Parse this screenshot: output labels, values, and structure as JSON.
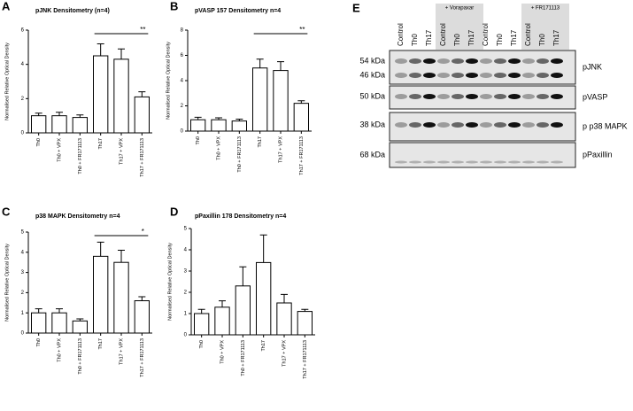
{
  "chart_data": [
    {
      "type": "bar",
      "label": "A",
      "title": "pJNK Densitometry (n=4)",
      "y_label": "Normalised Relative Optical Density",
      "categories": [
        "Th0",
        "Th0 + VPX",
        "Th0 + FR171113",
        "Th17",
        "Th17 + VPX",
        "Th17 + FR171113"
      ],
      "values": [
        1.0,
        1.0,
        0.9,
        4.5,
        4.3,
        2.1
      ],
      "errors": [
        0.15,
        0.2,
        0.15,
        0.7,
        0.6,
        0.3
      ],
      "color": "#ffffff",
      "ylim": [
        0,
        6
      ],
      "yticks": [
        0,
        2,
        4,
        6
      ],
      "annotation": "**"
    },
    {
      "type": "bar",
      "label": "B",
      "title": "pVASP 157 Densitometry n=4",
      "y_label": "Normalised Relative Optical Density",
      "categories": [
        "Th0",
        "Th0 + VPX",
        "Th0 + FR171113",
        "Th17",
        "Th17 + VPX",
        "Th17 + FR171113"
      ],
      "values": [
        0.9,
        0.9,
        0.8,
        5.0,
        4.8,
        2.2
      ],
      "errors": [
        0.2,
        0.15,
        0.15,
        0.7,
        0.7,
        0.2
      ],
      "color": "#ffffff",
      "ylim": [
        0,
        8
      ],
      "yticks": [
        0,
        2,
        4,
        6,
        8
      ],
      "annotation": "**"
    },
    {
      "type": "bar",
      "label": "C",
      "title": "p38 MAPK Densitometry n=4",
      "y_label": "Normalised Relative Optical Density",
      "categories": [
        "Th0",
        "Th0 + VPX",
        "Th0 + FR171113",
        "Th17",
        "Th17 + VPX",
        "Th17 + FR171113"
      ],
      "values": [
        1.0,
        1.0,
        0.6,
        3.8,
        3.5,
        1.6
      ],
      "errors": [
        0.2,
        0.2,
        0.1,
        0.7,
        0.6,
        0.2
      ],
      "color": "#ffffff",
      "ylim": [
        0,
        5
      ],
      "yticks": [
        0,
        1,
        2,
        3,
        4,
        5
      ],
      "annotation": "*"
    },
    {
      "type": "bar",
      "label": "D",
      "title": "pPaxillin 178 Densitometry n=4",
      "y_label": "Normalised Relative Optical Density",
      "categories": [
        "Th0",
        "Th0 + VPX",
        "Th0 + FR171113",
        "Th17",
        "Th17 + VPX",
        "Th17 + FR171113"
      ],
      "values": [
        1.0,
        1.3,
        2.3,
        3.4,
        1.5,
        1.1
      ],
      "errors": [
        0.2,
        0.3,
        0.9,
        1.3,
        0.4,
        0.1
      ],
      "color": "#ffffff",
      "ylim": [
        0,
        5
      ],
      "yticks": [
        0,
        1,
        2,
        3,
        4,
        5
      ]
    }
  ],
  "blot": {
    "label": "E",
    "groups": [
      "+ Vorapaxar",
      "+ FR171113"
    ],
    "lanes": [
      "Control",
      "Th0",
      "Th17",
      "Control",
      "Th0",
      "Th17",
      "Control",
      "Th0",
      "Th17",
      "Control",
      "Th0",
      "Th17"
    ],
    "markers": [
      "54 kDa",
      "46 kDa",
      "50 kDa",
      "38 kDa",
      "68 kDa"
    ],
    "proteins": [
      "pJNK",
      "pVASP",
      "p p38 MAPK",
      "pPaxillin"
    ]
  }
}
